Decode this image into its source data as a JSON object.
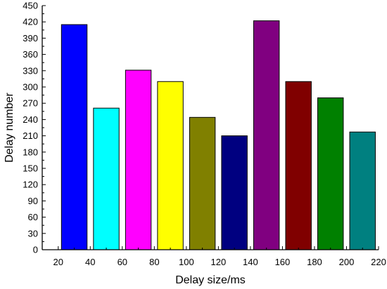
{
  "chart_data": {
    "type": "bar",
    "xlabel": "Delay size/ms",
    "ylabel": "Delay number",
    "xlim": [
      10,
      220
    ],
    "ylim": [
      0,
      450
    ],
    "x_ticks": [
      20,
      40,
      60,
      80,
      100,
      120,
      140,
      160,
      180,
      200,
      220
    ],
    "y_ticks": [
      0,
      30,
      60,
      90,
      120,
      150,
      180,
      210,
      240,
      270,
      300,
      330,
      360,
      390,
      420,
      450
    ],
    "bar_width": 16,
    "grid": false,
    "bars": [
      {
        "x": 30,
        "value": 415,
        "color": "#0000ff"
      },
      {
        "x": 50,
        "value": 261,
        "color": "#00ffff"
      },
      {
        "x": 70,
        "value": 331,
        "color": "#ff00ff"
      },
      {
        "x": 90,
        "value": 310,
        "color": "#ffff00"
      },
      {
        "x": 110,
        "value": 244,
        "color": "#808000"
      },
      {
        "x": 130,
        "value": 210,
        "color": "#000080"
      },
      {
        "x": 150,
        "value": 422,
        "color": "#800080"
      },
      {
        "x": 170,
        "value": 310,
        "color": "#800000"
      },
      {
        "x": 190,
        "value": 280,
        "color": "#008000"
      },
      {
        "x": 210,
        "value": 217,
        "color": "#008080"
      }
    ]
  }
}
